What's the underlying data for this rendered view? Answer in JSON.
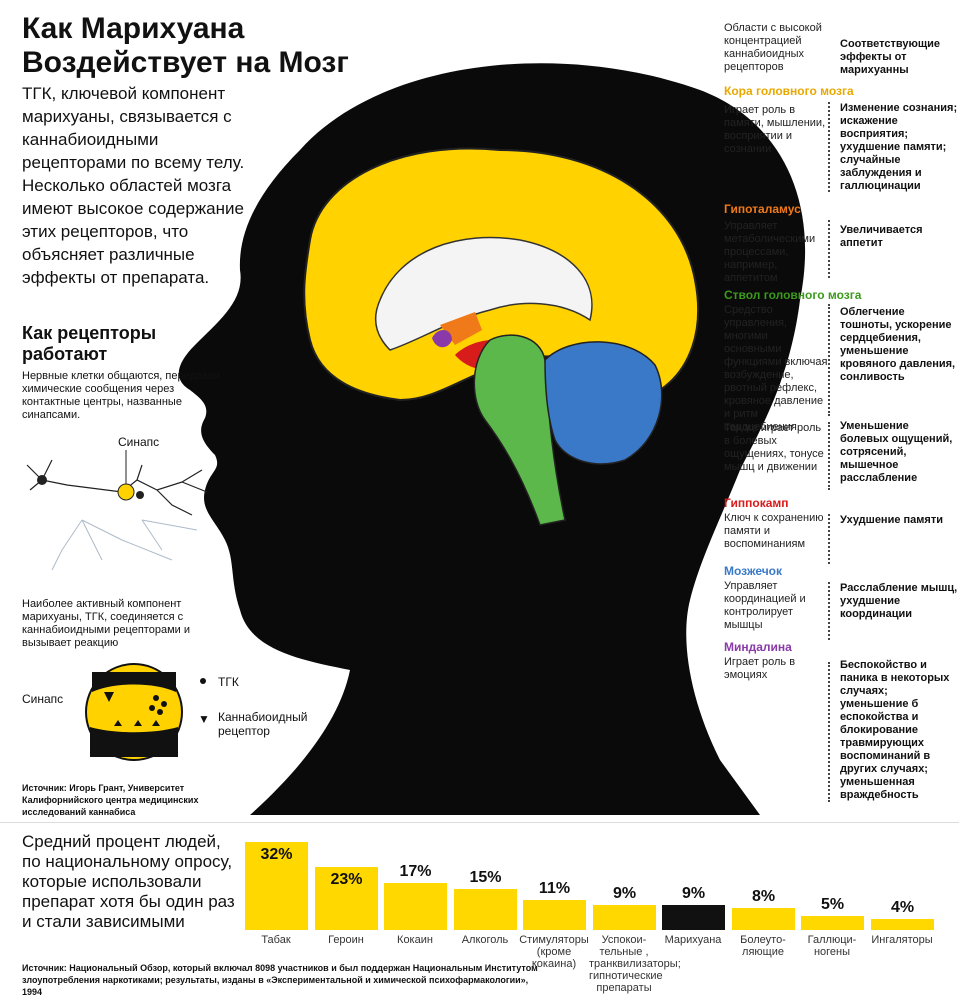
{
  "title_lines": [
    "Как Марихуана",
    "Воздействует на Мозг"
  ],
  "intro": "ТГК, ключевой компонент марихуаны, связывается с каннабиоидными рецепторами по всему телу. Несколько областей мозга имеют высокое содержание этих рецепторов, что объясняет различные эффекты от препарата.",
  "receptors": {
    "title": "Как рецепторы работают",
    "text": "Нервные клетки общаются, передавая химические сообщения через контактные центры, названные синапсами.",
    "synapse_label": "Синапс",
    "active_text": "Наиболее активный компонент марихуаны, ТГК, соединяется с каннабиоидными рецепторами и вызывает реакцию",
    "legend_synapse": "Синапс",
    "legend_thc": "ТГК",
    "legend_receptor_lines": [
      "Каннабиоидный",
      "рецептор"
    ]
  },
  "source_top": "Источник: Игорь Грант, Университет Калифорнийского центра медицинских исследований каннабиса",
  "right_panel": {
    "col_left_header": "Области с высокой концентрацией каннабиоидных рецепторов",
    "col_right_header": "Соответствующие эффекты от марихуанны",
    "regions": [
      {
        "name": "Кора головного мозга",
        "color": "#e8a800",
        "role": "Играет роль в памяти, мышлении, восприятии и сознании",
        "effect": "Изменение сознания; искажение восприятия; ухудшение памяти; случайные заблуждения и галлюцинации"
      },
      {
        "name": "Гипоталамус",
        "color": "#f07a1a",
        "role": "Управляет метаболическими процессами, например, аппетитом",
        "effect": "Увеличивается аппетит"
      },
      {
        "name": "Ствол головного мозга",
        "color": "#3a9a1a",
        "role": "Средство управления, многими основными функциями включая возбуждение, рвотный рефлекс, кровяное давление и ритм сердцебиения.",
        "effect": "Облегчение тошноты, ускорение сердцебиения, уменьшение кровяного давления, сонливость",
        "role2": "Так же играет роль в болевых ощущениях, тонусе мышц и движении",
        "effect2": "Уменьшение болевых ощущений, сотрясений, мышечное расслабление"
      },
      {
        "name": "Гиппокамп",
        "color": "#d81b1b",
        "role": "Ключ к сохранению памяти и воспоминаниям",
        "effect": "Ухудшение памяти"
      },
      {
        "name": "Мозжечок",
        "color": "#3a78c8",
        "role": "Управляет координацией и контролирует мышцы",
        "effect": "Расслабление мышц, ухудшение координации"
      },
      {
        "name": "Миндалина",
        "color": "#8a3aa8",
        "role": "Играет роль в эмоциях",
        "effect": "Беспокойство и паника в некоторых случаях; уменьшение б еспокойства и блокирование травмирующих воспоминаний в других случаях; уменьшенная враждебность"
      }
    ]
  },
  "bottom": {
    "text": "Средний процент людей, по национальному опросу, которые использовали препарат хотя бы один раз и стали зависимыми",
    "source": "Источник: Национальный Обзор, который включал 8098 участников и был поддержан Национальным Институтом злоупотребления наркотиками; результаты, изданы в «Экспериментальной и химической психофармакологии», 1994"
  },
  "chart_data": {
    "type": "bar",
    "categories": [
      "Табак",
      "Героин",
      "Кокаин",
      "Алкоголь",
      "Стимуляторы (кроме кокаина)",
      "Успокоительные, транквилизаторы, гипнотические препараты",
      "Марихуана",
      "Болеутоляющие",
      "Галлюциногены",
      "Ингаляторы"
    ],
    "category_lines": [
      [
        "Табак"
      ],
      [
        "Героин"
      ],
      [
        "Кокаин"
      ],
      [
        "Алкоголь"
      ],
      [
        "Стимуляторы",
        "(кроме",
        "кокаина)"
      ],
      [
        "Успокои-",
        "тельные ,",
        "транквилизаторы;",
        "гипнотические",
        "препараты"
      ],
      [
        "Марихуана"
      ],
      [
        "Болеуто-",
        "ляющие"
      ],
      [
        "Галлюци-",
        "ногены"
      ],
      [
        "Ингаляторы"
      ]
    ],
    "values": [
      32,
      23,
      17,
      15,
      11,
      9,
      9,
      8,
      5,
      4
    ],
    "value_labels": [
      "32%",
      "23%",
      "17%",
      "15%",
      "11%",
      "9%",
      "9%",
      "8%",
      "5%",
      "4%"
    ],
    "colors": [
      "#ffd800",
      "#ffd800",
      "#ffd800",
      "#ffd800",
      "#ffd800",
      "#ffd800",
      "#111111",
      "#ffd800",
      "#ffd800",
      "#ffd800"
    ],
    "ylim": [
      0,
      32
    ]
  }
}
